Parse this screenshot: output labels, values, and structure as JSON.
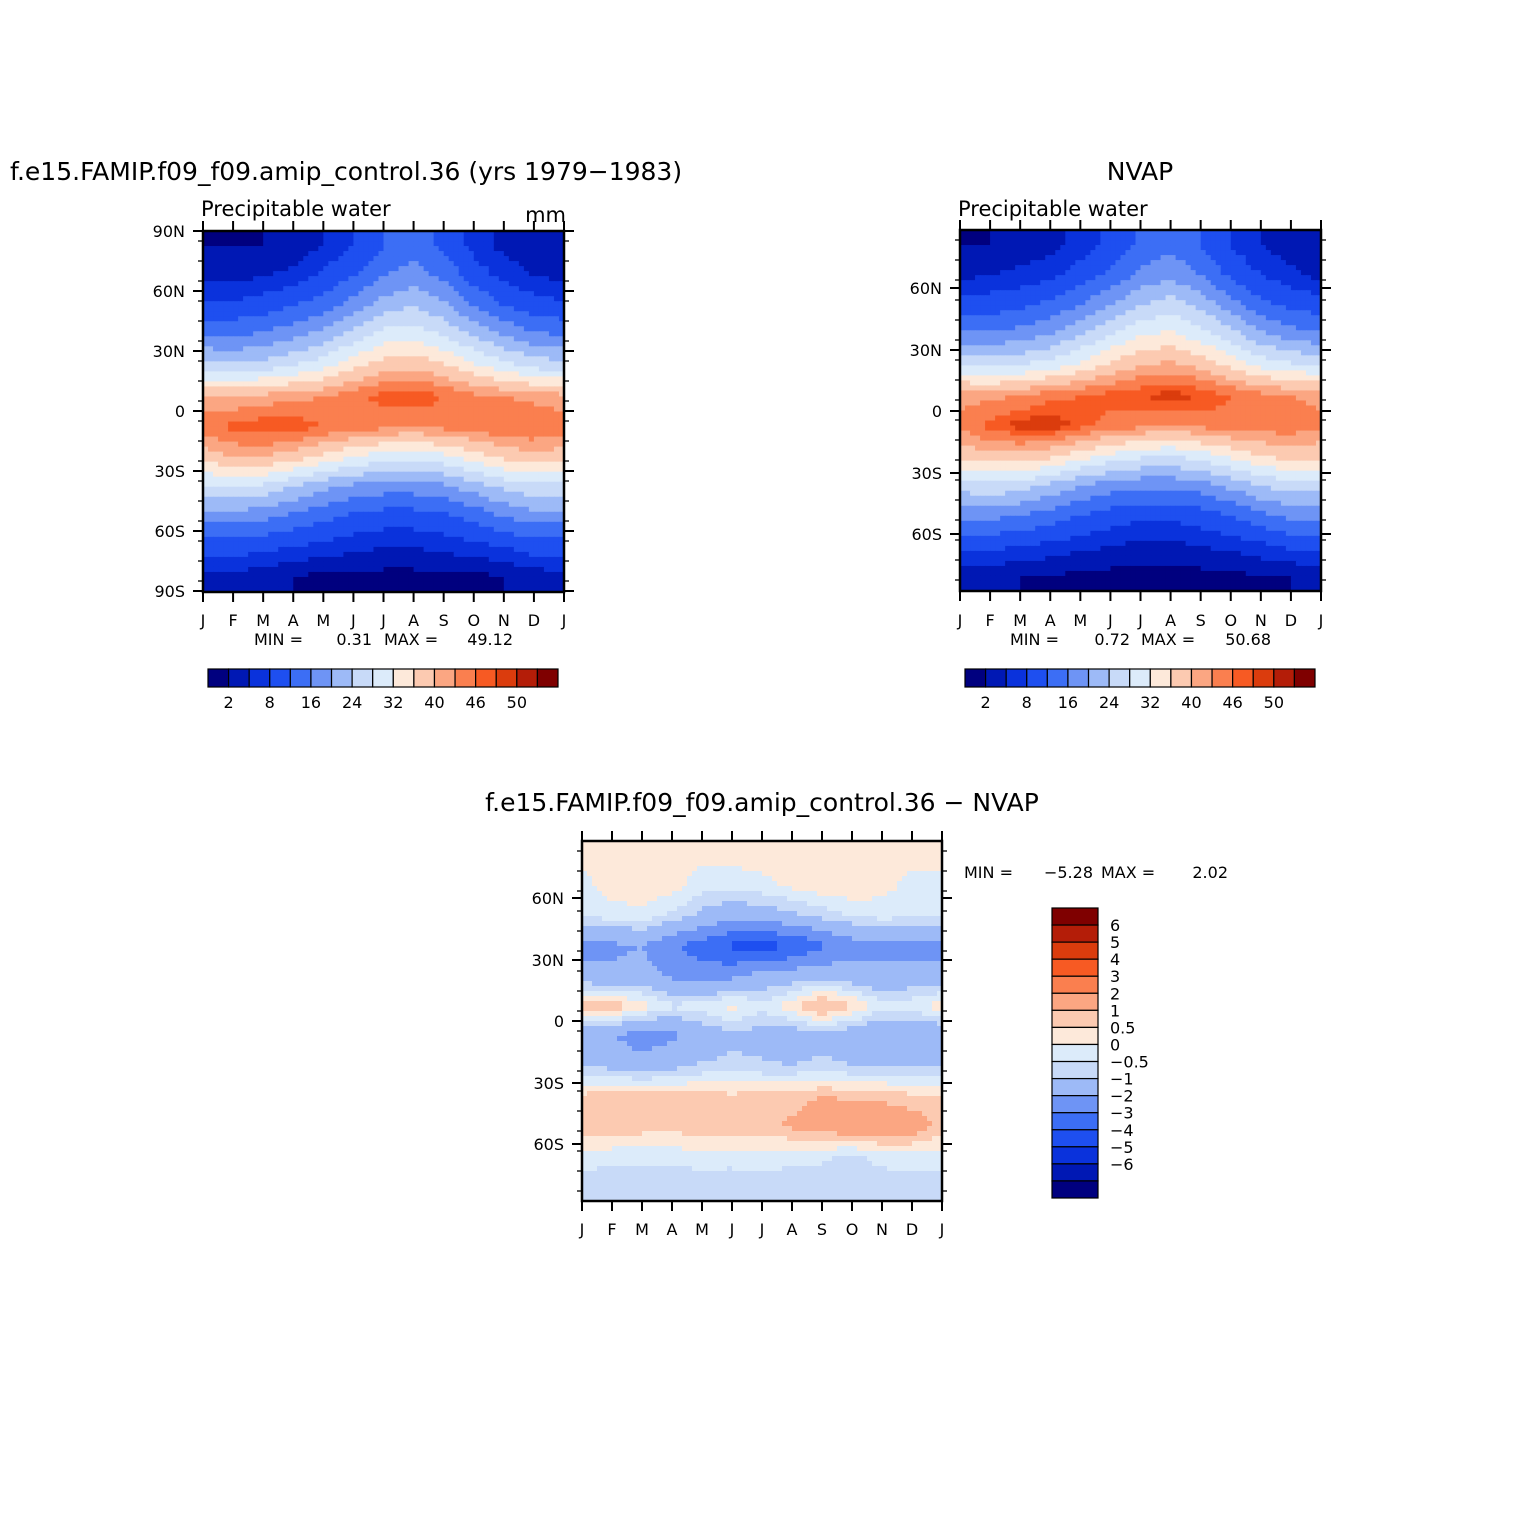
{
  "chart_data": [
    {
      "type": "heatmap",
      "title": "f.e15.FAMIP.f09_f09.amip_control.36 (yrs 1979−1983)",
      "subtitle_left": "Precipitable water",
      "subtitle_right": "mm",
      "xticklabels": [
        "J",
        "F",
        "M",
        "A",
        "M",
        "J",
        "J",
        "A",
        "S",
        "O",
        "N",
        "D",
        "J"
      ],
      "yticklabels": [
        "90N",
        "60N",
        "30N",
        "0",
        "30S",
        "60S",
        "90S"
      ],
      "ylim": [
        -90,
        90
      ],
      "stats": {
        "min_label": "MIN =",
        "min": "0.31",
        "max_label": "MAX =",
        "max": "49.12"
      },
      "colorbar": {
        "colors": [
          "#00007f",
          "#0018b4",
          "#0a32dc",
          "#1e4ff0",
          "#3c6ef5",
          "#6e94f5",
          "#9dbaf7",
          "#c8daf8",
          "#dcebfa",
          "#fde9da",
          "#fccab1",
          "#fba682",
          "#fa7f4f",
          "#f75a23",
          "#db3c0d",
          "#b41d08",
          "#7f0000"
        ],
        "labels": [
          "2",
          "8",
          "16",
          "24",
          "32",
          "40",
          "46",
          "50"
        ]
      },
      "series_matrix": [
        [
          2,
          2,
          2,
          3,
          5,
          8,
          12,
          14,
          11,
          7,
          4,
          3,
          2
        ],
        [
          4,
          4,
          5,
          6,
          9,
          12,
          16,
          18,
          15,
          10,
          7,
          5,
          4
        ],
        [
          9,
          9,
          10,
          12,
          14,
          18,
          22,
          24,
          21,
          16,
          12,
          10,
          9
        ],
        [
          16,
          16,
          17,
          19,
          22,
          26,
          30,
          31,
          28,
          24,
          20,
          17,
          16
        ],
        [
          26,
          25,
          26,
          28,
          31,
          35,
          38,
          39,
          37,
          33,
          30,
          27,
          26
        ],
        [
          40,
          40,
          41,
          42,
          43,
          45,
          47,
          48,
          46,
          44,
          43,
          42,
          41
        ],
        [
          45,
          47,
          48,
          48,
          46,
          45,
          44,
          43,
          44,
          45,
          46,
          46,
          45
        ],
        [
          38,
          40,
          40,
          38,
          35,
          32,
          30,
          29,
          31,
          34,
          37,
          39,
          38
        ],
        [
          27,
          28,
          27,
          24,
          21,
          19,
          18,
          18,
          19,
          22,
          25,
          27,
          27
        ],
        [
          18,
          18,
          17,
          15,
          13,
          11,
          10,
          10,
          11,
          13,
          16,
          18,
          18
        ],
        [
          10,
          10,
          9,
          8,
          7,
          6,
          5,
          5,
          6,
          7,
          8,
          10,
          10
        ],
        [
          4,
          4,
          3,
          2,
          1,
          1,
          1,
          1,
          1,
          1,
          2,
          3,
          4
        ]
      ]
    },
    {
      "type": "heatmap",
      "title": "NVAP",
      "subtitle_left": "Precipitable water",
      "xticklabels": [
        "J",
        "F",
        "M",
        "A",
        "M",
        "J",
        "J",
        "A",
        "S",
        "O",
        "N",
        "D",
        "J"
      ],
      "yticklabels": [
        "60N",
        "30N",
        "0",
        "30S",
        "60S"
      ],
      "stats": {
        "min_label": "MIN =",
        "min": "0.72",
        "max_label": "MAX =",
        "max": "50.68"
      },
      "colorbar": {
        "colors": [
          "#00007f",
          "#0018b4",
          "#0a32dc",
          "#1e4ff0",
          "#3c6ef5",
          "#6e94f5",
          "#9dbaf7",
          "#c8daf8",
          "#dcebfa",
          "#fde9da",
          "#fccab1",
          "#fba682",
          "#fa7f4f",
          "#f75a23",
          "#db3c0d",
          "#b41d08",
          "#7f0000"
        ],
        "labels": [
          "2",
          "8",
          "16",
          "24",
          "32",
          "40",
          "46",
          "50"
        ]
      },
      "series_matrix": [
        [
          2,
          2,
          3,
          4,
          6,
          9,
          13,
          15,
          12,
          8,
          5,
          3,
          2
        ],
        [
          4,
          5,
          6,
          7,
          10,
          13,
          17,
          19,
          16,
          11,
          8,
          6,
          4
        ],
        [
          10,
          10,
          11,
          13,
          16,
          20,
          24,
          26,
          23,
          18,
          13,
          11,
          10
        ],
        [
          17,
          17,
          18,
          20,
          24,
          28,
          32,
          33,
          30,
          26,
          21,
          18,
          17
        ],
        [
          28,
          27,
          28,
          30,
          33,
          37,
          40,
          41,
          39,
          35,
          31,
          29,
          28
        ],
        [
          42,
          42,
          43,
          45,
          46,
          47,
          48,
          49,
          48,
          46,
          44,
          43,
          42
        ],
        [
          44,
          47,
          49,
          50,
          47,
          45,
          44,
          43,
          44,
          45,
          45,
          45,
          44
        ],
        [
          37,
          39,
          39,
          37,
          34,
          31,
          29,
          28,
          30,
          33,
          36,
          38,
          37
        ],
        [
          26,
          27,
          26,
          23,
          20,
          18,
          17,
          17,
          18,
          21,
          24,
          26,
          26
        ],
        [
          17,
          17,
          16,
          14,
          12,
          10,
          9,
          9,
          10,
          12,
          15,
          17,
          17
        ],
        [
          9,
          9,
          8,
          7,
          6,
          5,
          4,
          4,
          5,
          6,
          7,
          9,
          9
        ],
        [
          3,
          3,
          2,
          2,
          1,
          1,
          1,
          1,
          1,
          1,
          2,
          2,
          3
        ]
      ]
    },
    {
      "type": "heatmap",
      "title": "f.e15.FAMIP.f09_f09.amip_control.36 − NVAP",
      "xticklabels": [
        "J",
        "F",
        "M",
        "A",
        "M",
        "J",
        "J",
        "A",
        "S",
        "O",
        "N",
        "D",
        "J"
      ],
      "yticklabels": [
        "60N",
        "30N",
        "0",
        "30S",
        "60S"
      ],
      "stats": {
        "min_label": "MIN =",
        "min": "−5.28",
        "max_label": "MAX =",
        "max": "2.02"
      },
      "colorbar": {
        "colors": [
          "#00007f",
          "#0018b4",
          "#0a32dc",
          "#1e4ff0",
          "#3c6ef5",
          "#6e94f5",
          "#9dbaf7",
          "#c8daf8",
          "#dcebfa",
          "#fde9da",
          "#fccab1",
          "#fba682",
          "#fa7f4f",
          "#f75a23",
          "#db3c0d",
          "#b41d08",
          "#7f0000"
        ],
        "labels": [
          "6",
          "5",
          "4",
          "3",
          "2",
          "1",
          "0.5",
          "0",
          "−0.5",
          "−1",
          "−2",
          "−3",
          "−4",
          "−5",
          "−6"
        ]
      },
      "series_matrix": [
        [
          0.2,
          0.3,
          0.4,
          0.3,
          0.1,
          0.2,
          0.3,
          0.4,
          0.3,
          0.2,
          0.1,
          0.2,
          0.2
        ],
        [
          -0.2,
          0.3,
          0.4,
          0.2,
          -0.3,
          -0.4,
          -0.2,
          0.1,
          0.3,
          0.4,
          0.2,
          -0.2,
          -0.2
        ],
        [
          -0.4,
          -0.3,
          -0.2,
          -0.6,
          -1.2,
          -1.6,
          -1.4,
          -1.2,
          -0.8,
          -0.5,
          -0.3,
          -0.4,
          -0.4
        ],
        [
          -2.5,
          -2.2,
          -2.0,
          -2.8,
          -3.5,
          -4.2,
          -4.5,
          -4.0,
          -3.2,
          -2.5,
          -2.2,
          -2.4,
          -2.5
        ],
        [
          -1.5,
          -1.8,
          -1.6,
          -2.2,
          -2.5,
          -2.2,
          -1.6,
          -1.4,
          -1.2,
          -1.5,
          -1.8,
          -1.5,
          -1.5
        ],
        [
          0.8,
          0.9,
          0.3,
          -0.4,
          -0.2,
          0.2,
          -0.3,
          0.3,
          1.2,
          0.6,
          -0.3,
          -0.2,
          0.3
        ],
        [
          -1.8,
          -2.0,
          -2.5,
          -2.2,
          -1.6,
          -1.2,
          -1.3,
          -1.5,
          -1.3,
          -1.6,
          -1.9,
          -2.0,
          -1.8
        ],
        [
          -1.0,
          -1.2,
          -1.6,
          -1.2,
          -0.9,
          -0.8,
          -0.9,
          -1.0,
          -0.8,
          -1.0,
          -1.1,
          -1.0,
          -1.0
        ],
        [
          0.6,
          0.8,
          0.9,
          0.8,
          0.7,
          0.6,
          0.7,
          0.8,
          1.0,
          0.9,
          0.8,
          0.6,
          0.6
        ],
        [
          0.8,
          0.9,
          0.8,
          0.7,
          0.9,
          1.0,
          0.9,
          1.1,
          1.4,
          1.6,
          1.7,
          1.5,
          0.8
        ],
        [
          -0.2,
          -0.3,
          -0.4,
          -0.3,
          -0.2,
          -0.3,
          -0.2,
          -0.3,
          -0.4,
          -0.6,
          -0.3,
          -0.2,
          -0.2
        ],
        [
          -0.8,
          -0.9,
          -0.8,
          -1.0,
          -0.8,
          -0.8,
          -0.7,
          -0.9,
          -0.8,
          -0.9,
          -0.8,
          -0.8,
          -0.8
        ]
      ]
    }
  ]
}
